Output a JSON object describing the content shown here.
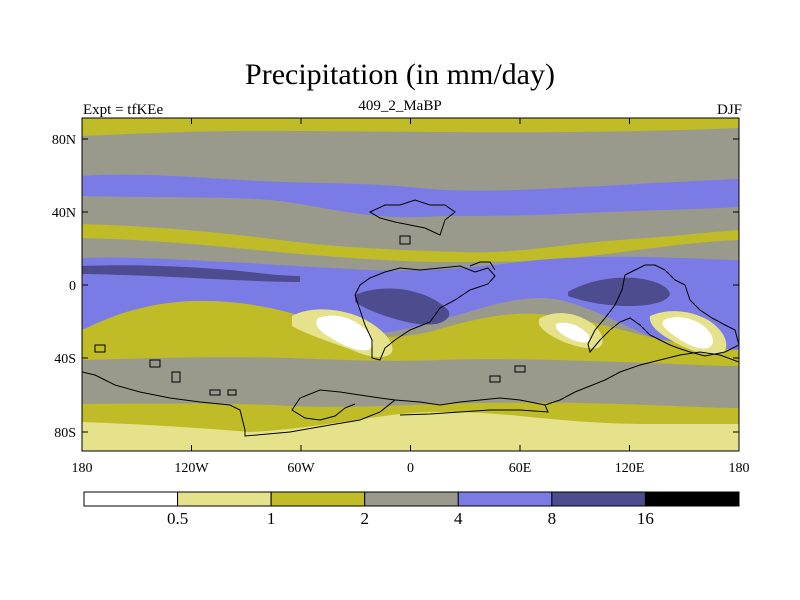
{
  "title": "Precipitation (in mm/day)",
  "left_label": "Expt = tfKEe",
  "center_label": "409_2_MaBP",
  "right_label": "DJF",
  "lat_ticks": [
    "80N",
    "40N",
    "0",
    "40S",
    "80S"
  ],
  "lon_ticks": [
    "180",
    "120W",
    "60W",
    "0",
    "60E",
    "120E",
    "180"
  ],
  "colorbar": {
    "colors": [
      "#ffffff",
      "#e6e28c",
      "#bfbc28",
      "#9a9a8c",
      "#7b7be6",
      "#4c4c8e",
      "#000000"
    ],
    "labels": [
      "0.5",
      "1",
      "2",
      "4",
      "8",
      "16"
    ]
  },
  "colors": {
    "white": "#ffffff",
    "light_yellow": "#e6e28c",
    "olive": "#bfbc28",
    "gray": "#9a9a8c",
    "blue": "#7b7be6",
    "dark_blue": "#4c4c8e"
  }
}
